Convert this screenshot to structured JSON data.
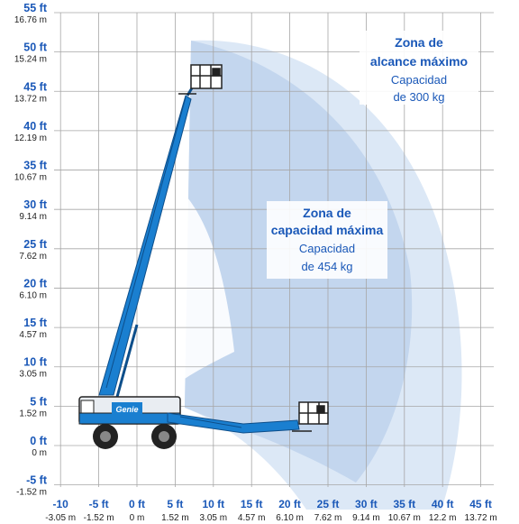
{
  "y_axis": {
    "ticks": [
      {
        "ft": "55 ft",
        "m": "16.76 m",
        "value": 55
      },
      {
        "ft": "50 ft",
        "m": "15.24 m",
        "value": 50
      },
      {
        "ft": "45 ft",
        "m": "13.72 m",
        "value": 45
      },
      {
        "ft": "40 ft",
        "m": "12.19 m",
        "value": 40
      },
      {
        "ft": "35 ft",
        "m": "10.67 m",
        "value": 35
      },
      {
        "ft": "30 ft",
        "m": "9.14 m",
        "value": 30
      },
      {
        "ft": "25 ft",
        "m": "7.62 m",
        "value": 25
      },
      {
        "ft": "20 ft",
        "m": "6.10 m",
        "value": 20
      },
      {
        "ft": "15 ft",
        "m": "4.57 m",
        "value": 15
      },
      {
        "ft": "10 ft",
        "m": "3.05 m",
        "value": 10
      },
      {
        "ft": "5 ft",
        "m": "1.52 m",
        "value": 5
      },
      {
        "ft": "0 ft",
        "m": "0 m",
        "value": 0
      },
      {
        "ft": "-5 ft",
        "m": "-1.52 m",
        "value": -5
      }
    ]
  },
  "x_axis": {
    "ticks": [
      {
        "ft": "-10",
        "m": "-3.05 m",
        "value": -10
      },
      {
        "ft": "-5 ft",
        "m": "-1.52 m",
        "value": -5
      },
      {
        "ft": "0 ft",
        "m": "0 m",
        "value": 0
      },
      {
        "ft": "5 ft",
        "m": "1.52 m",
        "value": 5
      },
      {
        "ft": "10 ft",
        "m": "3.05 m",
        "value": 10
      },
      {
        "ft": "15 ft",
        "m": "4.57 m",
        "value": 15
      },
      {
        "ft": "20 ft",
        "m": "6.10 m",
        "value": 20
      },
      {
        "ft": "25 ft",
        "m": "7.62 m",
        "value": 25
      },
      {
        "ft": "30 ft",
        "m": "9.14 m",
        "value": 30
      },
      {
        "ft": "35 ft",
        "m": "10.67 m",
        "value": 35
      },
      {
        "ft": "40 ft",
        "m": "12.2 m",
        "value": 40
      },
      {
        "ft": "45 ft",
        "m": "13.72 m",
        "value": 45
      }
    ]
  },
  "zones": {
    "max_reach": {
      "title_line1": "Zona de",
      "title_line2": "alcance máximo",
      "sub_line1": "Capacidad",
      "sub_line2": "de 300 kg"
    },
    "max_capacity": {
      "title_line1": "Zona de",
      "title_line2": "capacidad máxima",
      "sub_line1": "Capacidad",
      "sub_line2": "de 454 kg"
    }
  },
  "machine": {
    "brand": "Genie"
  },
  "colors": {
    "outer_zone": "#dce8f6",
    "inner_zone": "#c3d6ee",
    "machine_blue": "#1a7fd0",
    "label_blue": "#1a58b8",
    "grid": "#a6a6a6"
  }
}
